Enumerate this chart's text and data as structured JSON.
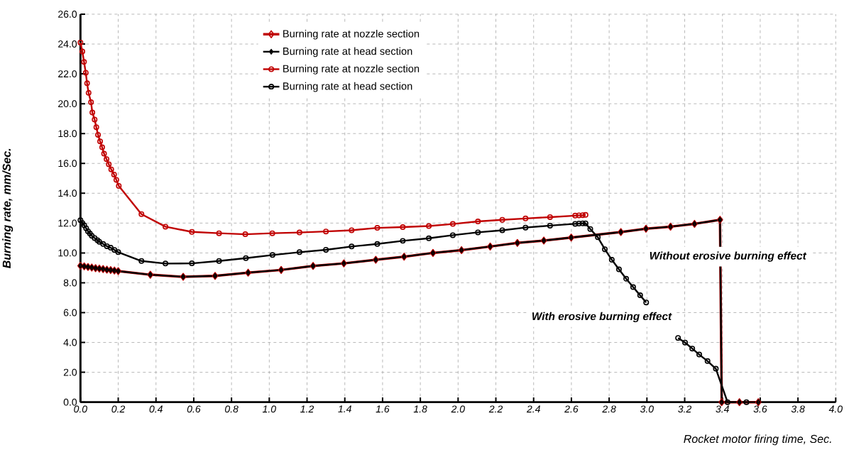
{
  "chart_data": {
    "type": "line",
    "xlabel": "Rocket motor firing time, Sec.",
    "ylabel": "Burning rate, mm/Sec.",
    "xlim": [
      0,
      4
    ],
    "ylim": [
      0,
      26
    ],
    "xticks": [
      {
        "value": 0,
        "label": "0.0"
      },
      {
        "value": 0.2,
        "label": "0.2"
      },
      {
        "value": 0.4,
        "label": "0.4"
      },
      {
        "value": 0.6,
        "label": "0.6"
      },
      {
        "value": 0.8,
        "label": "0.8"
      },
      {
        "value": 1,
        "label": "1.0"
      },
      {
        "value": 1.2,
        "label": "1.2"
      },
      {
        "value": 1.4,
        "label": "1.4"
      },
      {
        "value": 1.6,
        "label": "1.6"
      },
      {
        "value": 1.8,
        "label": "1.8"
      },
      {
        "value": 2,
        "label": "2.0"
      },
      {
        "value": 2.2,
        "label": "2.2"
      },
      {
        "value": 2.4,
        "label": "2.4"
      },
      {
        "value": 2.6,
        "label": "2.6"
      },
      {
        "value": 2.8,
        "label": "2.8"
      },
      {
        "value": 3,
        "label": "3.0"
      },
      {
        "value": 3.2,
        "label": "3.2"
      },
      {
        "value": 3.4,
        "label": "3.4"
      },
      {
        "value": 3.6,
        "label": "3.6"
      },
      {
        "value": 3.8,
        "label": "3.8"
      },
      {
        "value": 4,
        "label": "4.0"
      }
    ],
    "yticks": [
      {
        "value": 0,
        "label": "0.0"
      },
      {
        "value": 2,
        "label": "2.0"
      },
      {
        "value": 4,
        "label": "4.0"
      },
      {
        "value": 6,
        "label": "6.0"
      },
      {
        "value": 8,
        "label": "8.0"
      },
      {
        "value": 10,
        "label": "10.0"
      },
      {
        "value": 12,
        "label": "12.0"
      },
      {
        "value": 14,
        "label": "14.0"
      },
      {
        "value": 16,
        "label": "16.0"
      },
      {
        "value": 18,
        "label": "18.0"
      },
      {
        "value": 20,
        "label": "20.0"
      },
      {
        "value": 22,
        "label": "22.0"
      },
      {
        "value": 24,
        "label": "24.0"
      },
      {
        "value": 26,
        "label": "26.0"
      }
    ],
    "grid": true,
    "legend": "top",
    "line_style": "solid",
    "series": [
      {
        "name": "Burning rate at nozzle section",
        "color": "#c00000",
        "marker": "diamond",
        "x": [
          0,
          0.02,
          0.04,
          0.06,
          0.08,
          0.1,
          0.12,
          0.14,
          0.16,
          0.18,
          0.2,
          0.37,
          0.544,
          0.713,
          0.888,
          1.063,
          1.232,
          1.395,
          1.564,
          1.714,
          1.867,
          2.018,
          2.17,
          2.314,
          2.454,
          2.599,
          2.862,
          2.995,
          3.125,
          3.252,
          3.387,
          3.396,
          3.49,
          3.59
        ],
        "values": [
          9.14,
          9.1,
          9.06,
          9.02,
          8.98,
          8.95,
          8.92,
          8.88,
          8.85,
          8.82,
          8.78,
          8.54,
          8.4,
          8.46,
          8.68,
          8.86,
          9.13,
          9.3,
          9.54,
          9.75,
          10.0,
          10.19,
          10.43,
          10.67,
          10.83,
          11.03,
          11.4,
          11.62,
          11.76,
          11.95,
          12.22,
          0,
          0,
          0
        ]
      },
      {
        "name": "Burning rate  at head section",
        "color": "#000000",
        "marker": "diamond",
        "x": [
          0,
          0.02,
          0.04,
          0.06,
          0.08,
          0.1,
          0.12,
          0.14,
          0.16,
          0.18,
          0.2,
          0.37,
          0.544,
          0.713,
          0.888,
          1.063,
          1.232,
          1.395,
          1.564,
          1.714,
          1.867,
          2.018,
          2.17,
          2.314,
          2.454,
          2.599,
          2.862,
          2.995,
          3.125,
          3.252,
          3.387,
          3.396,
          3.49,
          3.59
        ],
        "values": [
          9.14,
          9.1,
          9.06,
          9.02,
          8.98,
          8.95,
          8.92,
          8.88,
          8.85,
          8.82,
          8.78,
          8.54,
          8.4,
          8.46,
          8.68,
          8.86,
          9.13,
          9.3,
          9.54,
          9.75,
          10.0,
          10.19,
          10.43,
          10.67,
          10.83,
          11.03,
          11.4,
          11.62,
          11.76,
          11.95,
          12.22,
          0,
          0,
          0
        ]
      },
      {
        "name": "Burning rate  at nozzle section",
        "color": "#c00000",
        "marker": "circle",
        "x": [
          0,
          0.01,
          0.019,
          0.028,
          0.035,
          0.043,
          0.056,
          0.063,
          0.075,
          0.084,
          0.093,
          0.104,
          0.115,
          0.125,
          0.138,
          0.15,
          0.163,
          0.178,
          0.19,
          0.203,
          0.323,
          0.45,
          0.59,
          0.734,
          0.873,
          1.016,
          1.16,
          1.3,
          1.436,
          1.572,
          1.707,
          1.845,
          1.972,
          2.105,
          2.234,
          2.357,
          2.487,
          2.62,
          2.64,
          2.66,
          2.675
        ],
        "values": [
          24.1,
          23.5,
          22.8,
          22.08,
          21.37,
          20.73,
          20.1,
          19.41,
          18.94,
          18.43,
          17.92,
          17.48,
          17.08,
          16.65,
          16.29,
          15.94,
          15.6,
          15.25,
          14.9,
          14.49,
          12.6,
          11.76,
          11.41,
          11.32,
          11.25,
          11.32,
          11.37,
          11.44,
          11.52,
          11.68,
          11.73,
          11.8,
          11.94,
          12.11,
          12.22,
          12.31,
          12.4,
          12.5,
          12.52,
          12.53,
          12.55
        ]
      },
      {
        "name": "Burning rate  at head section",
        "color": "#000000",
        "marker": "circle",
        "x": [
          0,
          0.01,
          0.02,
          0.03,
          0.04,
          0.05,
          0.06,
          0.075,
          0.09,
          0.1,
          0.12,
          0.14,
          0.16,
          0.18,
          0.2,
          0.323,
          0.45,
          0.59,
          0.734,
          0.876,
          1.017,
          1.16,
          1.3,
          1.436,
          1.572,
          1.707,
          1.845,
          1.972,
          2.105,
          2.234,
          2.357,
          2.487,
          2.62,
          2.64,
          2.66,
          2.675,
          2.7,
          2.74,
          2.777,
          2.814,
          2.852,
          2.89,
          2.927,
          2.964,
          2.996,
          3.04,
          3.08,
          3.12,
          3.165,
          3.202,
          3.24,
          3.277,
          3.321,
          3.365,
          3.427,
          3.527
        ],
        "values": [
          12.2,
          12.0,
          11.85,
          11.65,
          11.45,
          11.3,
          11.15,
          11.0,
          10.85,
          10.75,
          10.6,
          10.45,
          10.35,
          10.2,
          10.05,
          9.46,
          9.29,
          9.3,
          9.46,
          9.65,
          9.86,
          10.05,
          10.21,
          10.43,
          10.6,
          10.81,
          10.98,
          11.19,
          11.38,
          11.52,
          11.7,
          11.83,
          11.95,
          11.97,
          11.98,
          11.98,
          11.6,
          11.05,
          10.25,
          9.54,
          8.9,
          8.27,
          7.71,
          7.16,
          6.68,
          null,
          null,
          null,
          4.3,
          3.99,
          3.59,
          3.19,
          2.75,
          2.24,
          0,
          0
        ]
      }
    ],
    "annotations": [
      "Without erosive burning effect",
      "With erosive burning effect"
    ]
  }
}
